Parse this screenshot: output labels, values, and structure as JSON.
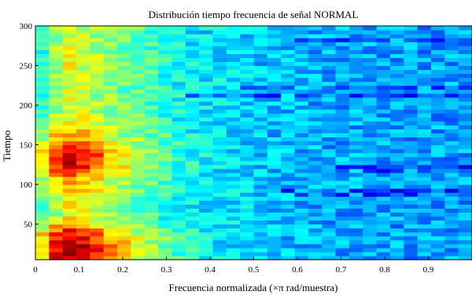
{
  "chart_data": {
    "type": "heatmap",
    "title": "Distribución tiempo frecuencia de señal NORMAL",
    "xlabel": "Frecuencia normalizada  (×π rad/muestra)",
    "ylabel": "Tiempo",
    "xlim": [
      0,
      1
    ],
    "ylim": [
      5,
      300
    ],
    "x_ticks": [
      0,
      0.1,
      0.2,
      0.3,
      0.4,
      0.5,
      0.6,
      0.7,
      0.8,
      0.9
    ],
    "x_tick_labels": [
      "0",
      "0.1",
      "0.2",
      "0.3",
      "0.4",
      "0.5",
      "0.6",
      "0.7",
      "0.8",
      "0.9"
    ],
    "y_ticks": [
      50,
      100,
      150,
      200,
      250,
      300
    ],
    "y_tick_labels": [
      "50",
      "100",
      "150",
      "200",
      "250",
      "300"
    ],
    "colormap": "jet",
    "x_columns": 32,
    "y_rows": 59,
    "time_profile": [
      {
        "t": 5,
        "v": 0.95
      },
      {
        "t": 15,
        "v": 1.0
      },
      {
        "t": 25,
        "v": 0.98
      },
      {
        "t": 40,
        "v": 0.9
      },
      {
        "t": 50,
        "v": 0.72
      },
      {
        "t": 60,
        "v": 0.6
      },
      {
        "t": 75,
        "v": 0.62
      },
      {
        "t": 90,
        "v": 0.66
      },
      {
        "t": 105,
        "v": 0.72
      },
      {
        "t": 120,
        "v": 0.88
      },
      {
        "t": 135,
        "v": 0.95
      },
      {
        "t": 150,
        "v": 0.8
      },
      {
        "t": 170,
        "v": 0.68
      },
      {
        "t": 190,
        "v": 0.6
      },
      {
        "t": 210,
        "v": 0.58
      },
      {
        "t": 230,
        "v": 0.6
      },
      {
        "t": 250,
        "v": 0.62
      },
      {
        "t": 270,
        "v": 0.6
      },
      {
        "t": 290,
        "v": 0.58
      },
      {
        "t": 300,
        "v": 0.6
      }
    ],
    "frequency_profile": [
      {
        "f": 0.0,
        "v": 0.55
      },
      {
        "f": 0.03,
        "v": 0.85
      },
      {
        "f": 0.08,
        "v": 1.0
      },
      {
        "f": 0.12,
        "v": 0.92
      },
      {
        "f": 0.18,
        "v": 0.72
      },
      {
        "f": 0.25,
        "v": 0.58
      },
      {
        "f": 0.32,
        "v": 0.45
      },
      {
        "f": 0.4,
        "v": 0.37
      },
      {
        "f": 0.5,
        "v": 0.32
      },
      {
        "f": 0.6,
        "v": 0.3
      },
      {
        "f": 0.8,
        "v": 0.28
      },
      {
        "f": 1.0,
        "v": 0.28
      }
    ],
    "low_bands": [
      {
        "t": 90,
        "f_from": 0.55
      },
      {
        "t": 120,
        "f_from": 0.65
      },
      {
        "t": 212,
        "f_from": 0.3
      },
      {
        "t": 222,
        "f_from": 0.4
      },
      {
        "t": 282,
        "f_from": 0.6
      }
    ]
  }
}
